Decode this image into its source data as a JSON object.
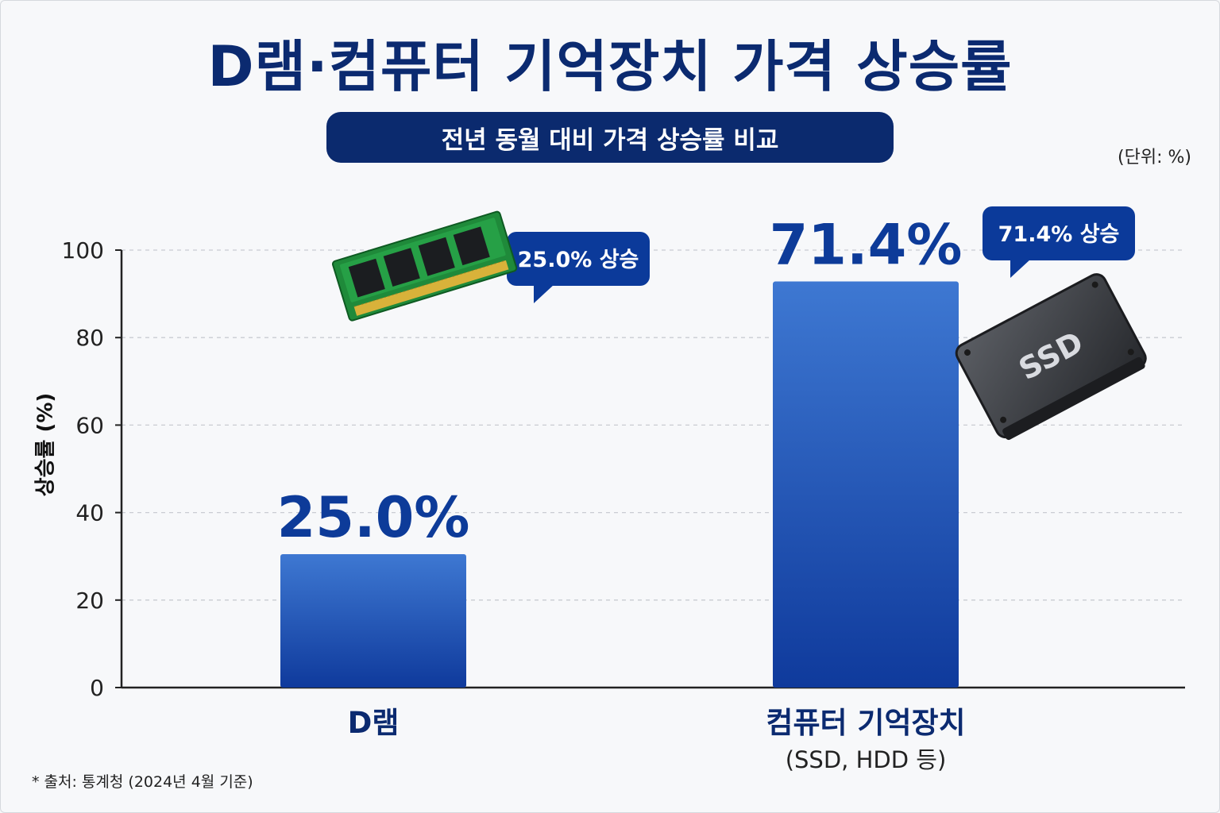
{
  "title": "D램·컴퓨터 기억장치 가격 상승률",
  "subtitle": "전년 동월 대비 가격 상승률 비교",
  "unit_note": "(단위: %)",
  "source": "* 출처: 통계청 (2024년 4월 기준)",
  "colors": {
    "title": "#0b2a70",
    "bar_top": "#3e78d2",
    "bar_bottom": "#0f3a9c",
    "value_label": "#0d3b99",
    "callout": "#0b3a9a"
  },
  "chart_data": {
    "type": "bar",
    "ylabel": "상승률 (%)",
    "ylim": [
      0,
      100
    ],
    "yticks": [
      0,
      20,
      40,
      60,
      80,
      100
    ],
    "grid": "dashed horizontal",
    "categories": [
      {
        "name": "D램",
        "sub": ""
      },
      {
        "name": "컴퓨터 기억장치",
        "sub": "(SSD, HDD 등)"
      }
    ],
    "values": [
      25.0,
      71.4
    ],
    "value_labels": [
      "25.0%",
      "71.4%"
    ],
    "callouts": [
      "25.0% 상승",
      "71.4% 상승"
    ]
  },
  "icons": [
    "ram-module-icon",
    "ssd-drive-icon"
  ]
}
